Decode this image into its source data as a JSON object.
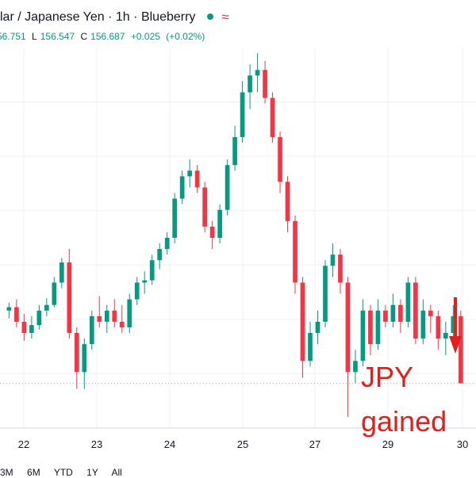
{
  "header": {
    "title_parts": [
      "lar / Japanese Yen",
      "1h",
      "Blueberry"
    ],
    "status_icon": "live-dot-icon",
    "indicator_icon": "wave-icon",
    "ohlc": {
      "open": "56.751",
      "low_label": "L",
      "low": "156.547",
      "close_label": "C",
      "close": "156.687",
      "change": "+0.025",
      "change_pct": "(+0.02%)"
    }
  },
  "colors": {
    "up": "#089981",
    "down": "#f23645",
    "annotation": "#e0201c",
    "grid": "#eef0f3",
    "text": "#131722"
  },
  "chart_data": {
    "type": "candlestick",
    "x_ticks": [
      "22",
      "23",
      "24",
      "25",
      "27",
      "29",
      "30"
    ],
    "grid": true,
    "series": [
      {
        "values": [
          [
            0,
            157.25,
            157.32,
            157.18,
            157.28
          ],
          [
            0.25,
            157.28,
            157.35,
            157.1,
            157.15
          ],
          [
            0.5,
            157.15,
            157.22,
            156.98,
            157.05
          ],
          [
            0.75,
            157.05,
            157.2,
            157.0,
            157.12
          ],
          [
            1,
            157.12,
            157.3,
            157.08,
            157.25
          ],
          [
            1.25,
            157.25,
            157.36,
            157.2,
            157.3
          ],
          [
            1.5,
            157.3,
            157.55,
            157.28,
            157.5
          ],
          [
            1.75,
            157.5,
            157.72,
            157.45,
            157.68
          ],
          [
            2,
            157.68,
            157.8,
            157.0,
            157.05
          ],
          [
            2.25,
            157.05,
            157.1,
            156.55,
            156.7
          ],
          [
            2.5,
            156.7,
            157.0,
            156.55,
            156.95
          ],
          [
            2.75,
            156.95,
            157.25,
            156.9,
            157.2
          ],
          [
            3,
            157.2,
            157.38,
            157.1,
            157.15
          ],
          [
            3.25,
            157.15,
            157.3,
            157.05,
            157.25
          ],
          [
            3.5,
            157.25,
            157.35,
            157.1,
            157.15
          ],
          [
            3.75,
            157.15,
            157.3,
            157.05,
            157.1
          ],
          [
            4,
            157.1,
            157.4,
            157.05,
            157.35
          ],
          [
            4.25,
            157.35,
            157.55,
            157.3,
            157.5
          ],
          [
            4.5,
            157.5,
            157.6,
            157.4,
            157.52
          ],
          [
            4.75,
            157.52,
            157.75,
            157.48,
            157.7
          ],
          [
            5,
            157.7,
            157.85,
            157.62,
            157.8
          ],
          [
            5.25,
            157.8,
            157.95,
            157.75,
            157.9
          ],
          [
            5.5,
            157.9,
            158.3,
            157.85,
            158.25
          ],
          [
            5.75,
            158.25,
            158.5,
            158.2,
            158.45
          ],
          [
            6,
            158.45,
            158.6,
            158.35,
            158.5
          ],
          [
            6.25,
            158.5,
            158.55,
            158.3,
            158.35
          ],
          [
            6.5,
            158.35,
            158.4,
            157.95,
            158.0
          ],
          [
            6.75,
            158.0,
            158.05,
            157.8,
            157.9
          ],
          [
            7,
            157.9,
            158.2,
            157.85,
            158.15
          ],
          [
            7.25,
            158.15,
            158.6,
            158.1,
            158.55
          ],
          [
            7.5,
            158.55,
            158.9,
            158.5,
            158.8
          ],
          [
            7.75,
            158.8,
            159.3,
            158.75,
            159.2
          ],
          [
            8,
            159.2,
            159.45,
            159.05,
            159.35
          ],
          [
            8.25,
            159.35,
            159.55,
            159.2,
            159.4
          ],
          [
            8.5,
            159.4,
            159.48,
            159.1,
            159.15
          ],
          [
            8.75,
            159.15,
            159.2,
            158.75,
            158.8
          ],
          [
            9,
            158.8,
            158.85,
            158.3,
            158.4
          ],
          [
            9.25,
            158.4,
            158.45,
            157.95,
            158.05
          ],
          [
            9.5,
            158.05,
            158.1,
            157.4,
            157.5
          ],
          [
            9.75,
            157.5,
            157.55,
            156.65,
            156.8
          ],
          [
            10,
            156.8,
            157.15,
            156.75,
            157.05
          ],
          [
            10.25,
            157.05,
            157.25,
            156.95,
            157.15
          ],
          [
            10.5,
            157.15,
            157.7,
            157.1,
            157.65
          ],
          [
            10.75,
            157.65,
            157.85,
            157.55,
            157.75
          ],
          [
            11,
            157.75,
            157.8,
            157.4,
            157.5
          ],
          [
            11.25,
            157.5,
            157.55,
            156.3,
            156.7
          ],
          [
            11.5,
            156.7,
            156.9,
            156.6,
            156.8
          ],
          [
            11.75,
            156.8,
            157.35,
            156.75,
            157.25
          ],
          [
            12,
            157.25,
            157.3,
            156.85,
            156.95
          ],
          [
            12.25,
            156.95,
            157.35,
            156.9,
            157.25
          ],
          [
            12.5,
            157.25,
            157.3,
            157.1,
            157.15
          ],
          [
            12.75,
            157.15,
            157.4,
            157.1,
            157.3
          ],
          [
            13,
            157.3,
            157.35,
            157.05,
            157.15
          ],
          [
            13.25,
            157.15,
            157.55,
            157.1,
            157.5
          ],
          [
            13.5,
            157.5,
            157.55,
            156.95,
            157.0
          ],
          [
            13.75,
            157.0,
            157.35,
            156.95,
            157.25
          ],
          [
            14,
            157.25,
            157.3,
            157.05,
            157.2
          ],
          [
            14.25,
            157.2,
            157.25,
            156.9,
            157.0
          ],
          [
            14.5,
            157.0,
            157.15,
            156.85,
            157.05
          ],
          [
            14.75,
            157.05,
            157.3,
            157.0,
            157.2
          ],
          [
            15,
            157.2,
            157.25,
            156.8,
            156.6
          ]
        ]
      }
    ],
    "ylim": [
      156.2,
      159.6
    ],
    "xlim": [
      -0.3,
      15.4
    ],
    "annotation": {
      "text_line1": "JPY",
      "text_line2": "gained",
      "arrow_icon": "down-arrow-icon"
    }
  },
  "range_buttons": [
    "3M",
    "6M",
    "YTD",
    "1Y",
    "All"
  ]
}
